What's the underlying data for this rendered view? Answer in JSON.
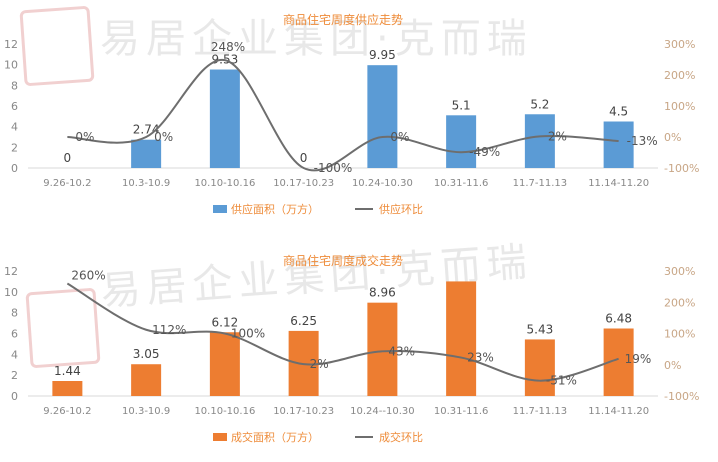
{
  "watermark": {
    "seal": "易居",
    "text": "易居企业集团·克而瑞"
  },
  "colors": {
    "supply_bar": "#5b9bd5",
    "deal_bar": "#ed7d31",
    "line": "#6e6e6e",
    "title": "#ee8c3a",
    "axis_text": "#888888",
    "right_axis_text": "#c8a686"
  },
  "chart_data": [
    {
      "type": "bar",
      "title": "商品住宅周度供应走势",
      "categories": [
        "9.26-10.2",
        "10.3-10.9",
        "10.10-10.16",
        "10.17-10.23",
        "10.24-10.30",
        "10.31-11.6",
        "11.7-11.13",
        "11.14-11.20"
      ],
      "value_labels": [
        "0",
        "2.74",
        "9.53",
        "0",
        "9.95",
        "5.1",
        "5.2",
        "4.5"
      ],
      "series": [
        {
          "name": "供应面积（万方）",
          "type": "bar",
          "axis": "left",
          "values": [
            0,
            2.74,
            9.53,
            0,
            9.95,
            5.1,
            5.2,
            4.5
          ]
        },
        {
          "name": "供应环比",
          "type": "line",
          "axis": "right",
          "values": [
            0,
            0,
            248,
            -100,
            0,
            -49,
            2,
            -13
          ],
          "labels": [
            "0%",
            "0%",
            "248%",
            "-100%",
            "0%",
            "-49%",
            "2%",
            "-13%"
          ]
        }
      ],
      "ylim": [
        0,
        12
      ],
      "yticks": [
        "0",
        "2",
        "4",
        "6",
        "8",
        "10",
        "12"
      ],
      "y2lim": [
        -100,
        300
      ],
      "y2ticks": [
        "-100%",
        "0%",
        "100%",
        "200%",
        "300%"
      ],
      "legend_position": "bottom"
    },
    {
      "type": "bar",
      "title": "商品住宅周度成交走势",
      "categories": [
        "9.26-10.2",
        "10.3-10.9",
        "10.10-10.16",
        "10.17-10.23",
        "10.24--10.30",
        "10.31-11.6",
        "11.7-11.13",
        "11.14-11.20"
      ],
      "value_labels": [
        "1.44",
        "3.05",
        "6.12",
        "6.25",
        "8.96",
        "",
        "5.43",
        "6.48"
      ],
      "series": [
        {
          "name": "成交面积（万方）",
          "type": "bar",
          "axis": "left",
          "values": [
            1.44,
            3.05,
            6.12,
            6.25,
            8.96,
            11.0,
            5.43,
            6.48
          ]
        },
        {
          "name": "成交环比",
          "type": "line",
          "axis": "right",
          "values": [
            260,
            112,
            100,
            2,
            43,
            23,
            -51,
            19
          ],
          "labels": [
            "260%",
            "112%",
            "100%",
            "2%",
            "43%",
            "23%",
            "-51%",
            "19%"
          ]
        }
      ],
      "ylim": [
        0,
        12
      ],
      "yticks": [
        "0",
        "2",
        "4",
        "6",
        "8",
        "10",
        "12"
      ],
      "y2lim": [
        -100,
        300
      ],
      "y2ticks": [
        "-100%",
        "0%",
        "100%",
        "200%",
        "300%"
      ],
      "legend_position": "bottom"
    }
  ]
}
